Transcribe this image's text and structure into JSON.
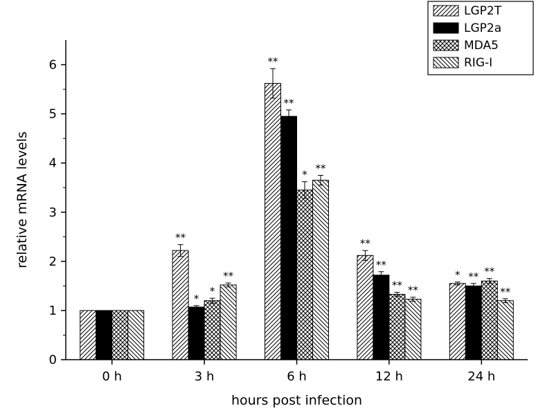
{
  "chart_data": {
    "type": "bar",
    "title": "",
    "xlabel": "hours post infection",
    "ylabel": "relative mRNA levels",
    "categories": [
      "0 h",
      "3 h",
      "6 h",
      "12 h",
      "24 h"
    ],
    "series": [
      {
        "name": "LGP2T",
        "pattern": "diag-up",
        "values": [
          1.0,
          2.22,
          5.62,
          2.12,
          1.55
        ],
        "errors": [
          0,
          0.12,
          0.3,
          0.1,
          0.03
        ],
        "sig": [
          "",
          "**",
          "**",
          "**",
          "*"
        ]
      },
      {
        "name": "LGP2a",
        "pattern": "solid",
        "values": [
          1.0,
          1.07,
          4.95,
          1.72,
          1.5
        ],
        "errors": [
          0,
          0.03,
          0.13,
          0.07,
          0.05
        ],
        "sig": [
          "",
          "*",
          "**",
          "**",
          "**"
        ]
      },
      {
        "name": "MDA5",
        "pattern": "cross",
        "values": [
          1.0,
          1.2,
          3.45,
          1.33,
          1.6
        ],
        "errors": [
          0,
          0.05,
          0.17,
          0.04,
          0.05
        ],
        "sig": [
          "",
          "*",
          "*",
          "**",
          "**"
        ]
      },
      {
        "name": "RIG-I",
        "pattern": "diag-down",
        "values": [
          1.0,
          1.52,
          3.65,
          1.23,
          1.2
        ],
        "errors": [
          0,
          0.04,
          0.1,
          0.04,
          0.04
        ],
        "sig": [
          "",
          "**",
          "**",
          "**",
          "**"
        ]
      }
    ],
    "ylim": [
      0,
      6.5
    ],
    "yticks": [
      0,
      1,
      2,
      3,
      4,
      5,
      6
    ],
    "minor_tick_step": 0.5,
    "grid": false,
    "legend_position": "top-right",
    "colors": {
      "axis": "#000000",
      "bar_fill_solid": "#000000",
      "bar_stroke": "#000000",
      "background": "#ffffff"
    }
  }
}
